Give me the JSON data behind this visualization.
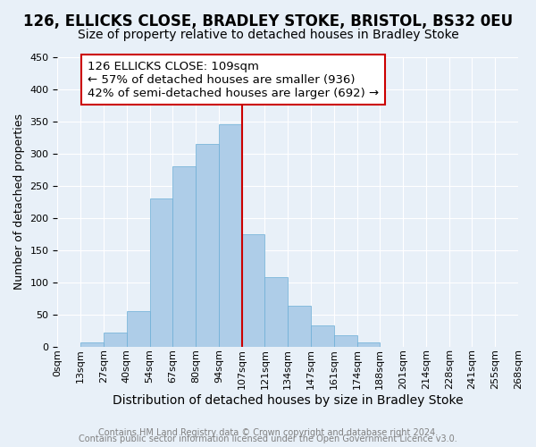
{
  "title": "126, ELLICKS CLOSE, BRADLEY STOKE, BRISTOL, BS32 0EU",
  "subtitle": "Size of property relative to detached houses in Bradley Stoke",
  "xlabel": "Distribution of detached houses by size in Bradley Stoke",
  "ylabel": "Number of detached properties",
  "footer_line1": "Contains HM Land Registry data © Crown copyright and database right 2024.",
  "footer_line2": "Contains public sector information licensed under the Open Government Licence v3.0.",
  "annotation_title": "126 ELLICKS CLOSE: 109sqm",
  "annotation_line1": "← 57% of detached houses are smaller (936)",
  "annotation_line2": "42% of semi-detached houses are larger (692) →",
  "tick_labels": [
    "0sqm",
    "13sqm",
    "27sqm",
    "40sqm",
    "54sqm",
    "67sqm",
    "80sqm",
    "94sqm",
    "107sqm",
    "121sqm",
    "134sqm",
    "147sqm",
    "161sqm",
    "174sqm",
    "188sqm",
    "201sqm",
    "214sqm",
    "228sqm",
    "241sqm",
    "255sqm",
    "268sqm"
  ],
  "bar_values": [
    0,
    6,
    22,
    55,
    230,
    280,
    315,
    345,
    175,
    108,
    63,
    33,
    18,
    7,
    0,
    0,
    0,
    0,
    0,
    0
  ],
  "bar_color": "#aecde8",
  "bar_edge_color": "#6aaed6",
  "vline_x": 8,
  "vline_color": "#cc0000",
  "bg_color": "#e8f0f8",
  "grid_color": "#ffffff",
  "ylim": [
    0,
    450
  ],
  "yticks": [
    0,
    50,
    100,
    150,
    200,
    250,
    300,
    350,
    400,
    450
  ],
  "annotation_box_color": "#ffffff",
  "annotation_box_edgecolor": "#cc0000",
  "title_fontsize": 12,
  "subtitle_fontsize": 10,
  "annotation_fontsize": 9.5,
  "tick_fontsize": 8,
  "xlabel_fontsize": 10,
  "ylabel_fontsize": 9,
  "footer_fontsize": 7
}
